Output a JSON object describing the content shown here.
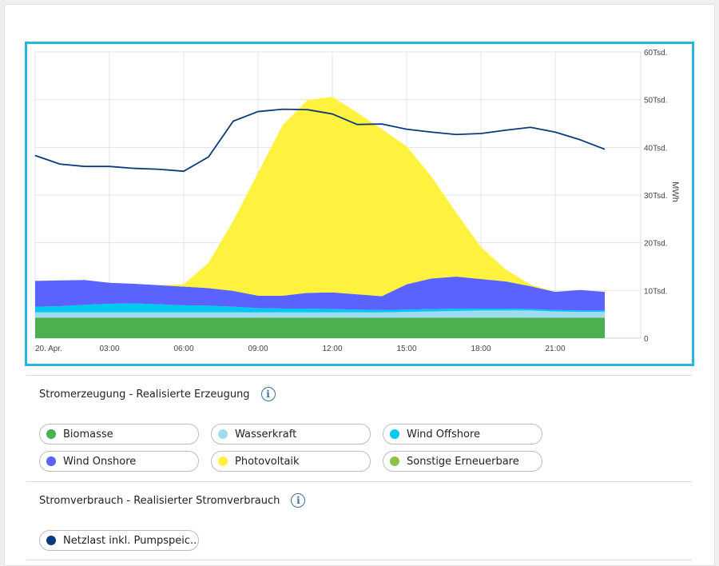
{
  "chart_data": {
    "type": "area",
    "stacked": true,
    "ylabel": "MWh",
    "ylim": [
      0,
      60000
    ],
    "yticks": [
      0,
      10000,
      20000,
      30000,
      40000,
      50000,
      60000
    ],
    "ytick_labels": [
      "0",
      "10Tsd.",
      "20Tsd.",
      "30Tsd.",
      "40Tsd.",
      "50Tsd.",
      "60Tsd."
    ],
    "x_range": [
      0,
      24
    ],
    "x_ticks": [
      0,
      3,
      6,
      9,
      12,
      15,
      18,
      21
    ],
    "xtick_labels": [
      "20. Apr.",
      "03:00",
      "06:00",
      "09:00",
      "12:00",
      "15:00",
      "18:00",
      "21:00"
    ],
    "x": [
      0,
      1,
      2,
      3,
      4,
      5,
      6,
      7,
      8,
      9,
      10,
      11,
      12,
      13,
      14,
      15,
      16,
      17,
      18,
      19,
      20,
      21,
      22,
      23
    ],
    "series": [
      {
        "name": "Biomasse",
        "color": "#4caf50",
        "values": [
          4300,
          4300,
          4300,
          4300,
          4300,
          4300,
          4300,
          4300,
          4300,
          4300,
          4300,
          4300,
          4300,
          4300,
          4300,
          4300,
          4300,
          4300,
          4300,
          4300,
          4300,
          4300,
          4300,
          4300
        ]
      },
      {
        "name": "Wasserkraft",
        "color": "#9fdcf0",
        "values": [
          1100,
          1100,
          1100,
          1100,
          1100,
          1100,
          1100,
          1100,
          1100,
          1100,
          1100,
          1100,
          1100,
          1100,
          1100,
          1200,
          1300,
          1400,
          1500,
          1500,
          1500,
          1300,
          1200,
          1200
        ]
      },
      {
        "name": "Wind Offshore",
        "color": "#00c8f0",
        "values": [
          1200,
          1300,
          1600,
          1800,
          1900,
          1700,
          1500,
          1400,
          1200,
          900,
          800,
          800,
          700,
          600,
          500,
          500,
          500,
          500,
          400,
          400,
          300,
          300,
          300,
          300
        ]
      },
      {
        "name": "Wind Onshore",
        "color": "#5b63ff",
        "values": [
          5400,
          5400,
          5200,
          4400,
          4100,
          4000,
          3900,
          3700,
          3300,
          2600,
          2700,
          3300,
          3500,
          3200,
          2900,
          5300,
          6400,
          6700,
          6200,
          5700,
          4800,
          3800,
          4300,
          3900
        ]
      },
      {
        "name": "Photovoltaik",
        "color": "#fff23f",
        "values": [
          0,
          0,
          0,
          0,
          0,
          0,
          500,
          5300,
          14700,
          25800,
          35800,
          40400,
          41000,
          38100,
          35000,
          28900,
          21400,
          13400,
          6700,
          2500,
          350,
          0,
          0,
          0
        ]
      },
      {
        "name": "Sonstige Erneuerbare",
        "color": "#8bc34a",
        "values": [
          0,
          0,
          0,
          0,
          0,
          0,
          0,
          0,
          0,
          0,
          0,
          0,
          0,
          0,
          0,
          0,
          0,
          0,
          0,
          0,
          0,
          0,
          0,
          0
        ]
      }
    ],
    "line_series": [
      {
        "name": "Netzlast inkl. Pumpspeic...",
        "color": "#0b3a7a",
        "values": [
          38300,
          36500,
          36000,
          36000,
          35600,
          35400,
          35000,
          38000,
          45500,
          47500,
          48000,
          47900,
          47000,
          44800,
          44900,
          43800,
          43200,
          42700,
          42900,
          43600,
          44200,
          43200,
          41600,
          39600
        ]
      }
    ]
  },
  "sections": {
    "generation": {
      "title": "Stromerzeugung - Realisierte Erzeugung",
      "info_icon": "i",
      "items": [
        {
          "label": "Biomasse",
          "color": "#4caf50"
        },
        {
          "label": "Wasserkraft",
          "color": "#9fdcf0"
        },
        {
          "label": "Wind Offshore",
          "color": "#00c8f0"
        },
        {
          "label": "Wind Onshore",
          "color": "#5b63ff"
        },
        {
          "label": "Photovoltaik",
          "color": "#fff23f"
        },
        {
          "label": "Sonstige Erneuerbare",
          "color": "#8bc34a"
        }
      ]
    },
    "consumption": {
      "title": "Stromverbrauch - Realisierter Stromverbrauch",
      "info_icon": "i",
      "items": [
        {
          "label": "Netzlast inkl. Pumpspeic...",
          "color": "#0b3a7a"
        }
      ]
    }
  }
}
